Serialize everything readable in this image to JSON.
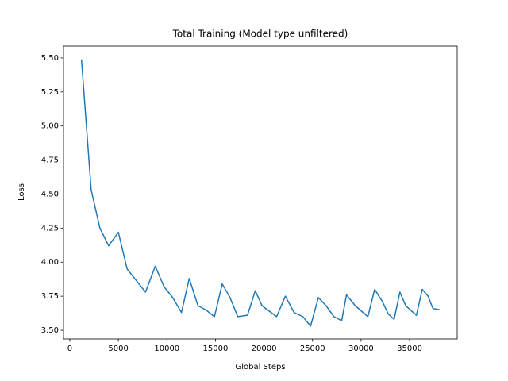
{
  "chart_data": {
    "type": "line",
    "title": "Total Training (Model type unfiltered)",
    "x_label": "Global Steps",
    "y_label": "Loss",
    "x": [
      1200,
      2200,
      3100,
      4000,
      5000,
      5900,
      6900,
      7800,
      8800,
      9700,
      10600,
      11500,
      12300,
      13200,
      14000,
      14900,
      15700,
      16500,
      17300,
      18300,
      19100,
      19800,
      21300,
      22200,
      23100,
      24000,
      24800,
      25600,
      26400,
      27200,
      28000,
      28500,
      29400,
      30700,
      31400,
      32200,
      32800,
      33400,
      34000,
      34600,
      35700,
      36300,
      36900,
      37400,
      38100
    ],
    "series": [
      {
        "name": "Loss",
        "color": "#1f77b4",
        "values": [
          5.49,
          4.53,
          4.25,
          4.12,
          4.22,
          3.95,
          3.86,
          3.78,
          3.97,
          3.82,
          3.74,
          3.63,
          3.88,
          3.68,
          3.65,
          3.6,
          3.84,
          3.74,
          3.6,
          3.61,
          3.79,
          3.68,
          3.6,
          3.75,
          3.63,
          3.6,
          3.53,
          3.74,
          3.68,
          3.6,
          3.57,
          3.76,
          3.68,
          3.6,
          3.8,
          3.71,
          3.62,
          3.58,
          3.78,
          3.68,
          3.61,
          3.8,
          3.75,
          3.66,
          3.65
        ]
      }
    ],
    "xlim": [
      -650,
      39900
    ],
    "xticks": [
      0,
      5000,
      10000,
      15000,
      20000,
      25000,
      30000,
      35000
    ],
    "ylim": [
      3.436,
      5.587
    ],
    "yticks": [
      {
        "value": 3.5,
        "label": "3.50"
      },
      {
        "value": 3.75,
        "label": "3.75"
      },
      {
        "value": 4.0,
        "label": "4.00"
      },
      {
        "value": 4.25,
        "label": "4.25"
      },
      {
        "value": 4.5,
        "label": "4.50"
      },
      {
        "value": 4.75,
        "label": "4.75"
      },
      {
        "value": 5.0,
        "label": "5.00"
      },
      {
        "value": 5.25,
        "label": "5.25"
      },
      {
        "value": 5.5,
        "label": "5.50"
      }
    ],
    "grid": false
  }
}
